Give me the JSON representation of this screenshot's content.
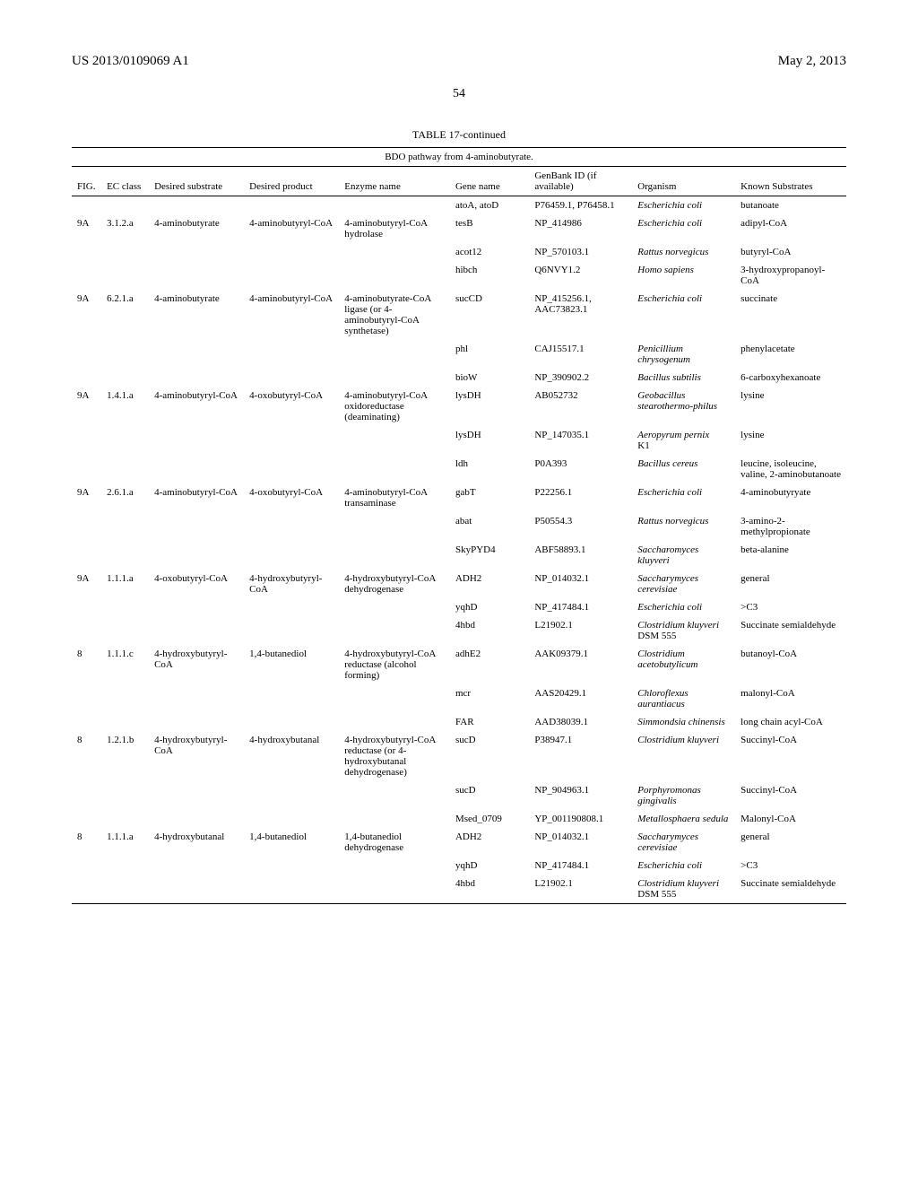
{
  "header": {
    "left": "US 2013/0109069 A1",
    "right": "May 2, 2013",
    "page": "54"
  },
  "table": {
    "caption": "TABLE 17-continued",
    "subtitle": "BDO pathway from 4-aminobutyrate.",
    "columns": [
      "FIG.",
      "EC class",
      "Desired substrate",
      "Desired product",
      "Enzyme name",
      "Gene name",
      "GenBank ID (if available)",
      "Organism",
      "Known Substrates"
    ],
    "rows": [
      {
        "fig": "",
        "ec": "",
        "sub": "",
        "prod": "",
        "enz": "",
        "gene": "atoA, atoD",
        "gb": "P76459.1, P76458.1",
        "org": "Escherichia coli",
        "known": "butanoate"
      },
      {
        "fig": "9A",
        "ec": "3.1.2.a",
        "sub": "4-aminobutyrate",
        "prod": "4-aminobutyryl-CoA",
        "enz": "4-aminobutyryl-CoA hydrolase",
        "gene": "tesB",
        "gb": "NP_414986",
        "org": "Escherichia coli",
        "known": "adipyl-CoA"
      },
      {
        "fig": "",
        "ec": "",
        "sub": "",
        "prod": "",
        "enz": "",
        "gene": "acot12",
        "gb": "NP_570103.1",
        "org": "Rattus norvegicus",
        "known": "butyryl-CoA"
      },
      {
        "fig": "",
        "ec": "",
        "sub": "",
        "prod": "",
        "enz": "",
        "gene": "hibch",
        "gb": "Q6NVY1.2",
        "org": "Homo sapiens",
        "known": "3-hydroxypropanoyl-CoA"
      },
      {
        "fig": "9A",
        "ec": "6.2.1.a",
        "sub": "4-aminobutyrate",
        "prod": "4-aminobutyryl-CoA",
        "enz": "4-aminobutyrate-CoA ligase (or 4-aminobutyryl-CoA synthetase)",
        "gene": "sucCD",
        "gb": "NP_415256.1, AAC73823.1",
        "org": "Escherichia coli",
        "known": "succinate"
      },
      {
        "fig": "",
        "ec": "",
        "sub": "",
        "prod": "",
        "enz": "",
        "gene": "phl",
        "gb": "CAJ15517.1",
        "org": "Penicillium chrysogenum",
        "known": "phenylacetate"
      },
      {
        "fig": "",
        "ec": "",
        "sub": "",
        "prod": "",
        "enz": "",
        "gene": "bioW",
        "gb": "NP_390902.2",
        "org": "Bacillus subtilis",
        "known": "6-carboxyhexanoate"
      },
      {
        "fig": "9A",
        "ec": "1.4.1.a",
        "sub": "4-aminobutyryl-CoA",
        "prod": "4-oxobutyryl-CoA",
        "enz": "4-aminobutyryl-CoA oxidoreductase (deaminating)",
        "gene": "lysDH",
        "gb": "AB052732",
        "org": "Geobacillus stearothermo-philus",
        "known": "lysine"
      },
      {
        "fig": "",
        "ec": "",
        "sub": "",
        "prod": "",
        "enz": "",
        "gene": "lysDH",
        "gb": "NP_147035.1",
        "org": "Aeropyrum pernix",
        "org2": "K1",
        "known": "lysine"
      },
      {
        "fig": "",
        "ec": "",
        "sub": "",
        "prod": "",
        "enz": "",
        "gene": "ldh",
        "gb": "P0A393",
        "org": "Bacillus cereus",
        "known": "leucine, isoleucine, valine, 2-aminobutanoate"
      },
      {
        "fig": "9A",
        "ec": "2.6.1.a",
        "sub": "4-aminobutyryl-CoA",
        "prod": "4-oxobutyryl-CoA",
        "enz": "4-aminobutyryl-CoA transaminase",
        "gene": "gabT",
        "gb": "P22256.1",
        "org": "Escherichia coli",
        "known": "4-aminobutyryate"
      },
      {
        "fig": "",
        "ec": "",
        "sub": "",
        "prod": "",
        "enz": "",
        "gene": "abat",
        "gb": "P50554.3",
        "org": "Rattus norvegicus",
        "known": "3-amino-2-methylpropionate"
      },
      {
        "fig": "",
        "ec": "",
        "sub": "",
        "prod": "",
        "enz": "",
        "gene": "SkyPYD4",
        "gb": "ABF58893.1",
        "org": "Saccharomyces kluyveri",
        "known": "beta-alanine"
      },
      {
        "fig": "9A",
        "ec": "1.1.1.a",
        "sub": "4-oxobutyryl-CoA",
        "prod": "4-hydroxybutyryl-CoA",
        "enz": "4-hydroxybutyryl-CoA dehydrogenase",
        "gene": "ADH2",
        "gb": "NP_014032.1",
        "org": "Saccharymyces cerevisiae",
        "known": "general"
      },
      {
        "fig": "",
        "ec": "",
        "sub": "",
        "prod": "",
        "enz": "",
        "gene": "yqhD",
        "gb": "NP_417484.1",
        "org": "Escherichia coli",
        "known": ">C3"
      },
      {
        "fig": "",
        "ec": "",
        "sub": "",
        "prod": "",
        "enz": "",
        "gene": "4hbd",
        "gb": "L21902.1",
        "org": "Clostridium kluyveri",
        "org2": "DSM 555",
        "known": "Succinate semialdehyde"
      },
      {
        "fig": "8",
        "ec": "1.1.1.c",
        "sub": "4-hydroxybutyryl-CoA",
        "prod": "1,4-butanediol",
        "enz": "4-hydroxybutyryl-CoA reductase (alcohol forming)",
        "gene": "adhE2",
        "gb": "AAK09379.1",
        "org": "Clostridium acetobutylicum",
        "known": "butanoyl-CoA"
      },
      {
        "fig": "",
        "ec": "",
        "sub": "",
        "prod": "",
        "enz": "",
        "gene": "mcr",
        "gb": "AAS20429.1",
        "org": "Chloroflexus aurantiacus",
        "known": "malonyl-CoA"
      },
      {
        "fig": "",
        "ec": "",
        "sub": "",
        "prod": "",
        "enz": "",
        "gene": "FAR",
        "gb": "AAD38039.1",
        "org": "Simmondsia chinensis",
        "known": "long chain acyl-CoA"
      },
      {
        "fig": "8",
        "ec": "1.2.1.b",
        "sub": "4-hydroxybutyryl-CoA",
        "prod": "4-hydroxybutanal",
        "enz": "4-hydroxybutyryl-CoA reductase (or 4-hydroxybutanal dehydrogenase)",
        "gene": "sucD",
        "gb": "P38947.1",
        "org": "Clostridium kluyveri",
        "known": "Succinyl-CoA"
      },
      {
        "fig": "",
        "ec": "",
        "sub": "",
        "prod": "",
        "enz": "",
        "gene": "sucD",
        "gb": "NP_904963.1",
        "org": "Porphyromonas gingivalis",
        "known": "Succinyl-CoA"
      },
      {
        "fig": "",
        "ec": "",
        "sub": "",
        "prod": "",
        "enz": "",
        "gene": "Msed_0709",
        "gb": "YP_001190808.1",
        "org": "Metallosphaera sedula",
        "known": "Malonyl-CoA"
      },
      {
        "fig": "8",
        "ec": "1.1.1.a",
        "sub": "4-hydroxybutanal",
        "prod": "1,4-butanediol",
        "enz": "1,4-butanediol dehydrogenase",
        "gene": "ADH2",
        "gb": "NP_014032.1",
        "org": "Saccharymyces cerevisiae",
        "known": "general"
      },
      {
        "fig": "",
        "ec": "",
        "sub": "",
        "prod": "",
        "enz": "",
        "gene": "yqhD",
        "gb": "NP_417484.1",
        "org": "Escherichia coli",
        "known": ">C3"
      },
      {
        "fig": "",
        "ec": "",
        "sub": "",
        "prod": "",
        "enz": "",
        "gene": "4hbd",
        "gb": "L21902.1",
        "org": "Clostridium kluyveri",
        "org2": "DSM 555",
        "known": "Succinate semialdehyde"
      }
    ]
  }
}
